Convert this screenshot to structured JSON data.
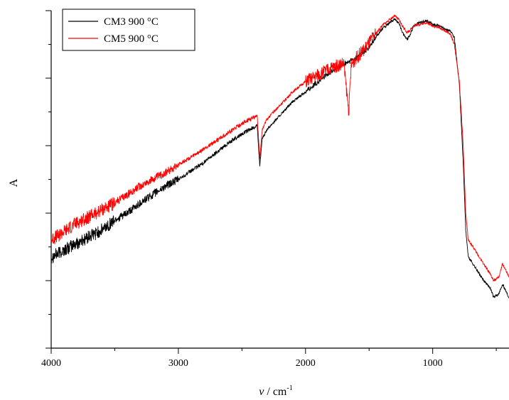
{
  "chart_data": {
    "type": "line",
    "title": "",
    "xlabel": "ν / cm",
    "xlabel_superscript": "-1",
    "ylabel": "A",
    "xlim": [
      4000,
      400
    ],
    "x_reversed": true,
    "ylim": [
      0,
      1
    ],
    "x_ticks": [
      4000,
      3000,
      2000,
      1000
    ],
    "x_tick_labels": [
      "4000",
      "3000",
      "2000",
      "1000"
    ],
    "y_tick_labels_shown": false,
    "grid": false,
    "legend_position": "top-left",
    "series": [
      {
        "name": "CM3 900 °C",
        "color": "#000000",
        "x": [
          4000,
          3900,
          3800,
          3700,
          3600,
          3500,
          3400,
          3300,
          3200,
          3100,
          3000,
          2900,
          2800,
          2700,
          2600,
          2500,
          2400,
          2380,
          2360,
          2340,
          2300,
          2200,
          2100,
          2000,
          1900,
          1800,
          1700,
          1600,
          1550,
          1500,
          1450,
          1400,
          1350,
          1300,
          1270,
          1230,
          1200,
          1170,
          1150,
          1100,
          1050,
          1000,
          950,
          900,
          860,
          830,
          790,
          760,
          740,
          720,
          700,
          650,
          600,
          550,
          520,
          480,
          450,
          400
        ],
        "y": [
          0.27,
          0.29,
          0.31,
          0.33,
          0.35,
          0.38,
          0.4,
          0.43,
          0.455,
          0.48,
          0.5,
          0.525,
          0.55,
          0.58,
          0.61,
          0.635,
          0.655,
          0.66,
          0.54,
          0.62,
          0.65,
          0.69,
          0.73,
          0.76,
          0.79,
          0.82,
          0.84,
          0.86,
          0.875,
          0.89,
          0.92,
          0.945,
          0.96,
          0.975,
          0.965,
          0.93,
          0.915,
          0.935,
          0.955,
          0.965,
          0.97,
          0.96,
          0.955,
          0.945,
          0.94,
          0.92,
          0.78,
          0.55,
          0.35,
          0.27,
          0.26,
          0.23,
          0.2,
          0.18,
          0.15,
          0.16,
          0.19,
          0.15
        ]
      },
      {
        "name": "CM5 900 °C",
        "color": "#ff0000",
        "x": [
          4000,
          3900,
          3800,
          3700,
          3600,
          3500,
          3400,
          3300,
          3200,
          3100,
          3000,
          2900,
          2800,
          2700,
          2600,
          2500,
          2400,
          2380,
          2360,
          2340,
          2300,
          2200,
          2100,
          2000,
          1900,
          1800,
          1700,
          1660,
          1640,
          1600,
          1550,
          1500,
          1450,
          1400,
          1350,
          1300,
          1270,
          1230,
          1200,
          1170,
          1150,
          1100,
          1050,
          1000,
          950,
          900,
          860,
          830,
          790,
          760,
          740,
          720,
          700,
          650,
          600,
          550,
          520,
          480,
          450,
          400
        ],
        "y": [
          0.32,
          0.345,
          0.37,
          0.39,
          0.41,
          0.43,
          0.455,
          0.48,
          0.5,
          0.52,
          0.545,
          0.565,
          0.59,
          0.615,
          0.64,
          0.665,
          0.685,
          0.69,
          0.56,
          0.65,
          0.68,
          0.72,
          0.76,
          0.79,
          0.81,
          0.83,
          0.845,
          0.7,
          0.84,
          0.86,
          0.88,
          0.905,
          0.93,
          0.955,
          0.97,
          0.985,
          0.975,
          0.95,
          0.935,
          0.945,
          0.955,
          0.96,
          0.965,
          0.955,
          0.95,
          0.94,
          0.93,
          0.9,
          0.79,
          0.6,
          0.4,
          0.32,
          0.31,
          0.28,
          0.25,
          0.22,
          0.2,
          0.21,
          0.25,
          0.21
        ]
      }
    ]
  }
}
